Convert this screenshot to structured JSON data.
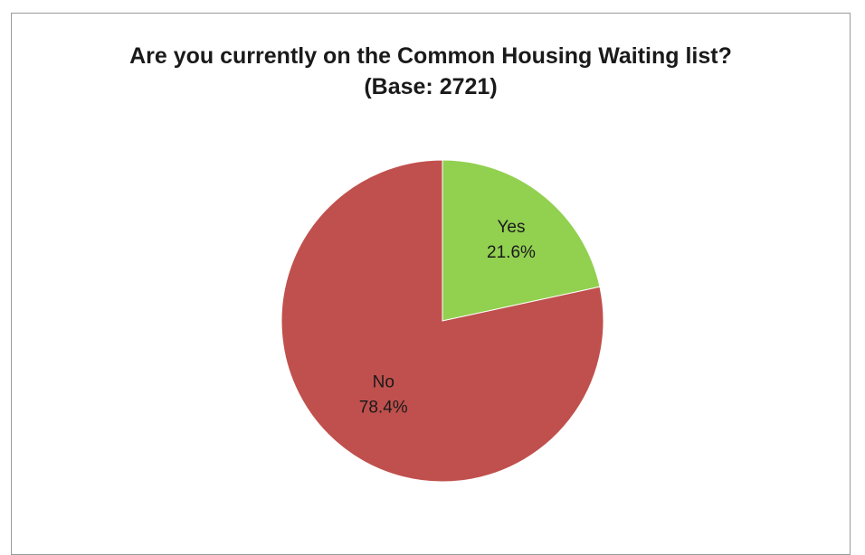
{
  "chart_data": {
    "type": "pie",
    "title": "Are you currently on the Common Housing Waiting list?",
    "subtitle": "(Base: 2721)",
    "categories": [
      "Yes",
      "No"
    ],
    "values": [
      21.6,
      78.4
    ],
    "value_labels": [
      "21.6%",
      "78.4%"
    ],
    "colors": [
      "#92d050",
      "#c0504d"
    ],
    "legend": "none",
    "start_angle": "12 o'clock, clockwise"
  }
}
